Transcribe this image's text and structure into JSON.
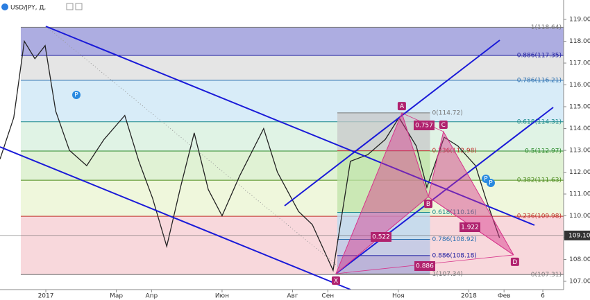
{
  "chart_data": {
    "type": "line",
    "title": "USD/JPY, Д,",
    "x": [
      -1.3,
      -0.91,
      -0.61,
      -0.31,
      -0.02,
      0.28,
      0.67,
      1.16,
      1.65,
      2.24,
      2.64,
      3.03,
      3.43,
      3.82,
      4.21,
      4.61,
      5.0,
      5.49,
      6.18,
      6.57,
      7.17,
      7.56,
      8.15,
      8.64,
      9.13,
      9.63,
      10.02,
      10.51,
      10.81,
      11.3,
      11.69,
      12.19,
      12.48,
      12.87
    ],
    "values": [
      112.6,
      114.5,
      118.0,
      117.2,
      117.8,
      114.8,
      113.0,
      112.3,
      113.5,
      114.6,
      112.5,
      110.8,
      108.6,
      111.3,
      113.8,
      111.2,
      110.0,
      111.8,
      114.0,
      112.0,
      110.2,
      109.6,
      107.5,
      112.5,
      112.8,
      113.5,
      114.5,
      113.2,
      111.3,
      113.6,
      113.2,
      112.3,
      110.8,
      109.0
    ],
    "color": "#222222",
    "xlim": [
      -1.3,
      14.69
    ],
    "ylim": [
      106.62,
      119.89
    ],
    "xticks": [
      {
        "value": 0,
        "label": "2017"
      },
      {
        "value": 2,
        "label": "Мар"
      },
      {
        "value": 3,
        "label": "Апр"
      },
      {
        "value": 5,
        "label": "Июн"
      },
      {
        "value": 7,
        "label": "Авг"
      },
      {
        "value": 8,
        "label": "Сен"
      },
      {
        "value": 10,
        "label": "Ноя"
      },
      {
        "value": 12,
        "label": "2018"
      },
      {
        "value": 13,
        "label": "Фев"
      },
      {
        "value": 14.1,
        "label": "6"
      }
    ],
    "yticks": [
      {
        "value": 107,
        "label": "107.00"
      },
      {
        "value": 108,
        "label": "108.00"
      },
      {
        "value": 109,
        "label": "109.00"
      },
      {
        "value": 110,
        "label": "110.00"
      },
      {
        "value": 111,
        "label": "111.00"
      },
      {
        "value": 112,
        "label": "112.00"
      },
      {
        "value": 113,
        "label": "113.00"
      },
      {
        "value": 114,
        "label": "114.00"
      },
      {
        "value": 115,
        "label": "115.00"
      },
      {
        "value": 116,
        "label": "116.00"
      },
      {
        "value": 117,
        "label": "117.00"
      },
      {
        "value": 118,
        "label": "118.00"
      },
      {
        "value": 119,
        "label": "119.00"
      }
    ],
    "last_price": {
      "value": 109.1,
      "label": "109.10"
    },
    "fib_outer": {
      "xlim": [
        -0.71,
        14.69
      ],
      "levels": [
        {
          "value": 118.64,
          "label": "1(118.64)",
          "color": "#777777",
          "band": "#6a6ac8"
        },
        {
          "value": 117.35,
          "label": "0.886(117.35)",
          "color": "#1a1aa0",
          "band": "#cfcfcf"
        },
        {
          "value": 116.21,
          "label": "0.786(116.21)",
          "color": "#2a6fb0",
          "band": "#b8dcf2"
        },
        {
          "value": 114.31,
          "label": "0.618(114.31)",
          "color": "#1a8a8a",
          "band": "#c6ead0"
        },
        {
          "value": 112.97,
          "label": "0.5(112.97)",
          "color": "#2a8a2a",
          "band": "#c6e8b0"
        },
        {
          "value": 111.63,
          "label": "0.382(111.63)",
          "color": "#4a8a1a",
          "band": "#e2f0c0"
        },
        {
          "value": 109.98,
          "label": "0.236(109.98)",
          "color": "#c0302a",
          "band": "#f2b8bf"
        },
        {
          "value": 107.31,
          "label": "0(107.31)",
          "color": "#777777"
        }
      ]
    },
    "fib_inner": {
      "xlim": [
        8.27,
        10.9
      ],
      "levels": [
        {
          "value": 114.72,
          "label": "0(114.72)",
          "color": "#777777",
          "band": "#c8c8c8"
        },
        {
          "value": 112.98,
          "label": "0.236(112.98)",
          "color": "#c0302a",
          "band": "#bfe3a8"
        },
        {
          "value": 110.16,
          "label": "0.618(110.16)",
          "color": "#1a8a8a",
          "band": "#b8dcf2"
        },
        {
          "value": 108.92,
          "label": "0.786(108.92)",
          "color": "#2a6fb0",
          "band": "#b8c8e8"
        },
        {
          "value": 108.18,
          "label": "0.886(108.18)",
          "color": "#1a1aa0",
          "band": "#a8a8d8"
        },
        {
          "value": 107.34,
          "label": "1(107.34)",
          "color": "#777777"
        }
      ]
    },
    "pattern": {
      "color": "#d6338a",
      "points": [
        {
          "label": "X",
          "x": 8.23,
          "value": 107.35
        },
        {
          "label": "A",
          "x": 10.1,
          "value": 114.71
        },
        {
          "label": "B",
          "x": 10.85,
          "value": 110.87
        },
        {
          "label": "C",
          "x": 11.28,
          "value": 113.86
        },
        {
          "label": "D",
          "x": 13.27,
          "value": 108.21
        }
      ],
      "ratios": [
        "0.757",
        "0.522",
        "1.922",
        "0.886"
      ]
    }
  }
}
